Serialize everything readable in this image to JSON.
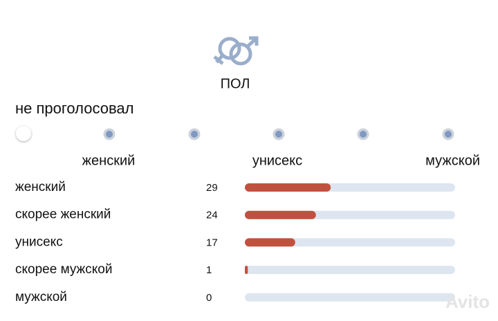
{
  "header": {
    "title": "ПОЛ"
  },
  "status": "не проголосовал",
  "scale_labels": [
    "женский",
    "унисекс",
    "мужской"
  ],
  "results": {
    "rows": [
      {
        "label": "женский",
        "count": 29
      },
      {
        "label": "скорее женский",
        "count": 24
      },
      {
        "label": "унисекс",
        "count": 17
      },
      {
        "label": "скорее мужской",
        "count": 1
      },
      {
        "label": "мужской",
        "count": 0
      }
    ]
  },
  "watermark": "Avito"
}
